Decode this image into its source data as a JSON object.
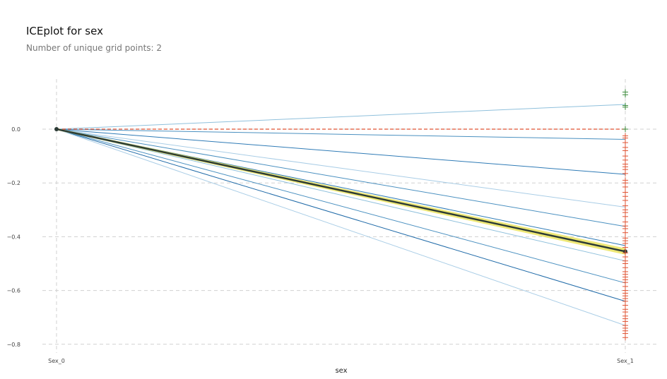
{
  "chart_data": {
    "type": "line",
    "title": "ICEplot for sex",
    "subtitle": "Number of unique grid points: 2",
    "xlabel": "sex",
    "categories": [
      "Sex_0",
      "Sex_1"
    ],
    "ylim": [
      -0.83,
      0.19
    ],
    "yticks": [
      0.0,
      -0.2,
      -0.4,
      -0.6,
      -0.8
    ],
    "ytick_labels": [
      "0.0",
      "−0.2",
      "−0.4",
      "−0.6",
      "−0.8"
    ],
    "grid": true,
    "ice_lines": [
      {
        "end": 0.092,
        "color": "#8fc0dc"
      },
      {
        "end": -0.038,
        "color": "#4a90c0"
      },
      {
        "end": -0.168,
        "color": "#2f7bb6"
      },
      {
        "end": -0.29,
        "color": "#a9cde6"
      },
      {
        "end": -0.362,
        "color": "#4a90c0"
      },
      {
        "end": -0.433,
        "color": "#2f7bb6"
      },
      {
        "end": -0.49,
        "color": "#8fc0dc"
      },
      {
        "end": -0.572,
        "color": "#4a90c0"
      },
      {
        "end": -0.64,
        "color": "#1f6aa8"
      },
      {
        "end": -0.73,
        "color": "#a9cde6"
      }
    ],
    "average_line": {
      "start": 0.0,
      "end": -0.455,
      "band": 0.012,
      "line_color": "#2b3a35",
      "band_color": "#e8e04a"
    },
    "reference_line": {
      "value": 0.0,
      "color": "#e05030"
    },
    "positive_markers": [
      0.138,
      0.128,
      0.088,
      0.082,
      0.0
    ],
    "negative_markers": [
      -0.025,
      -0.033,
      -0.05,
      -0.068,
      -0.08,
      -0.1,
      -0.115,
      -0.13,
      -0.14,
      -0.15,
      -0.165,
      -0.19,
      -0.2,
      -0.215,
      -0.235,
      -0.25,
      -0.265,
      -0.285,
      -0.3,
      -0.31,
      -0.325,
      -0.345,
      -0.36,
      -0.37,
      -0.385,
      -0.405,
      -0.415,
      -0.425,
      -0.44,
      -0.46,
      -0.475,
      -0.49,
      -0.5,
      -0.515,
      -0.53,
      -0.54,
      -0.55,
      -0.56,
      -0.57,
      -0.585,
      -0.6,
      -0.61,
      -0.62,
      -0.63,
      -0.64,
      -0.655,
      -0.67,
      -0.68,
      -0.695,
      -0.705,
      -0.715,
      -0.73,
      -0.74,
      -0.75,
      -0.76,
      -0.775
    ],
    "positive_color": "#3a8a3a",
    "negative_color": "#e05535"
  }
}
